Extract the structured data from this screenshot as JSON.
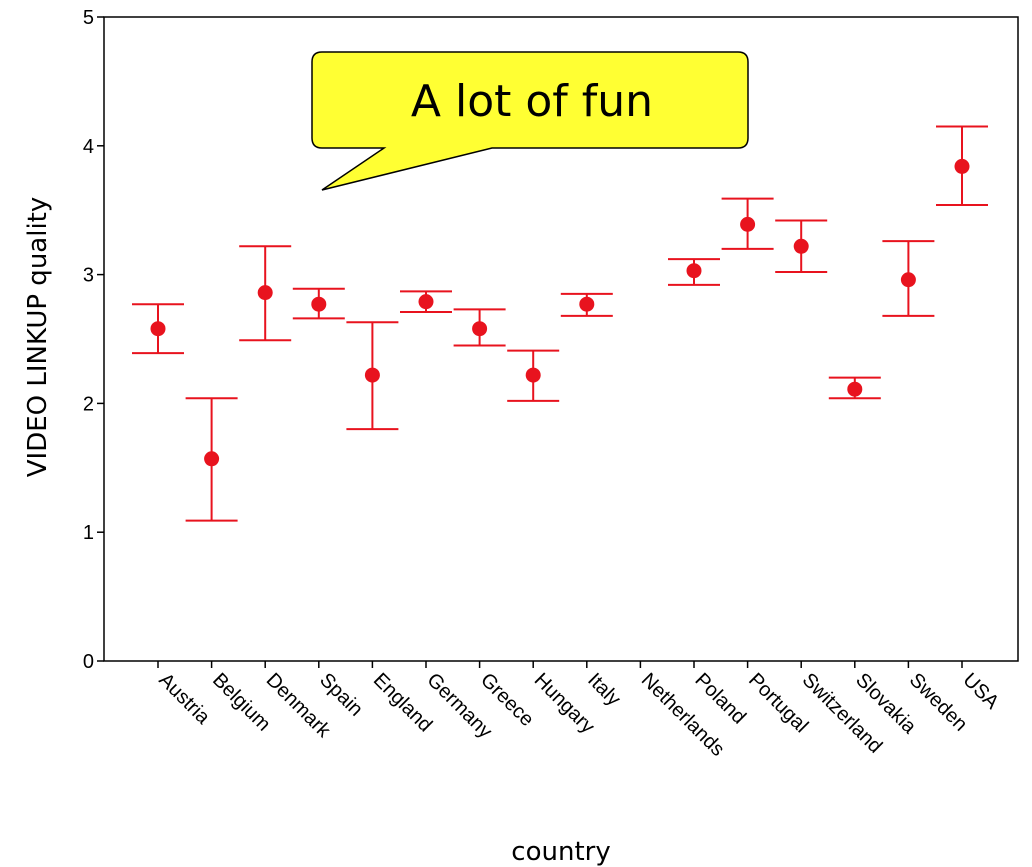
{
  "chart_data": {
    "type": "scatter",
    "ylabel": "VIDEO LINKUP quality",
    "xlabel": "country",
    "ylim": [
      0,
      5
    ],
    "yticks": [
      0,
      1,
      2,
      3,
      4,
      5
    ],
    "grid": false,
    "categories": [
      "Austria",
      "Belgium",
      "Denmark",
      "Spain",
      "England",
      "Germany",
      "Greece",
      "Hungary",
      "Italy",
      "Netherlands",
      "Poland",
      "Portugal",
      "Switzerland",
      "Slovakia",
      "Sweden",
      "USA"
    ],
    "series": [
      {
        "mean": [
          2.58,
          1.57,
          2.86,
          2.77,
          2.22,
          2.79,
          2.58,
          2.22,
          2.77,
          null,
          3.03,
          3.39,
          3.22,
          2.11,
          2.96,
          3.84
        ],
        "lower": [
          2.39,
          1.09,
          2.49,
          2.66,
          1.8,
          2.71,
          2.45,
          2.02,
          2.68,
          null,
          2.92,
          3.2,
          3.02,
          2.04,
          2.68,
          3.54
        ],
        "upper": [
          2.77,
          2.04,
          3.22,
          2.89,
          2.63,
          2.87,
          2.73,
          2.41,
          2.85,
          null,
          3.12,
          3.59,
          3.42,
          2.2,
          3.26,
          4.15
        ]
      }
    ],
    "marker_color": "#e8131e",
    "annotation": {
      "text": "A lot of fun",
      "fill": "#ffff33"
    }
  }
}
